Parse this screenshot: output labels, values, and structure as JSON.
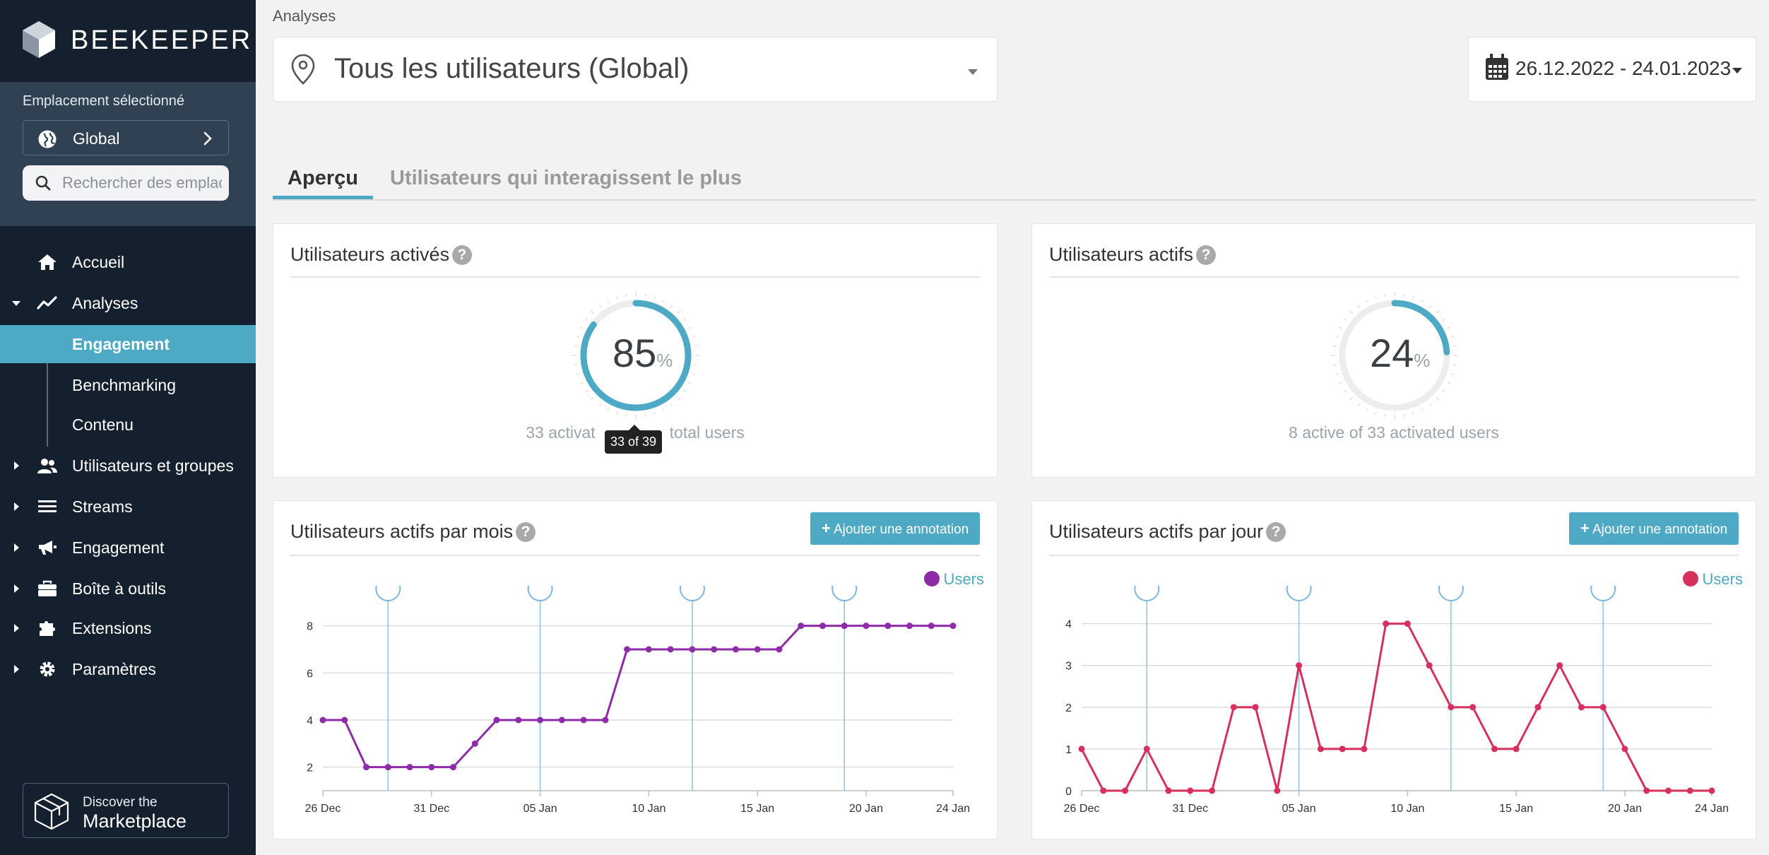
{
  "sidebar": {
    "brand": "BEEKEEPER",
    "location_label": "Emplacement sélectionné",
    "location_value": "Global",
    "search_placeholder": "Rechercher des emplacements",
    "nav": {
      "home": "Accueil",
      "analytics": "Analyses",
      "engagement_sub": "Engagement",
      "benchmarking": "Benchmarking",
      "content": "Contenu",
      "users_groups": "Utilisateurs et groupes",
      "streams": "Streams",
      "engagement": "Engagement",
      "toolbox": "Boîte à outils",
      "extensions": "Extensions",
      "settings": "Paramètres"
    },
    "marketplace_top": "Discover the",
    "marketplace_bottom": "Marketplace"
  },
  "header": {
    "breadcrumb": "Analyses",
    "user_scope": "Tous les utilisateurs (Global)",
    "date_range": "26.12.2022 - 24.01.2023"
  },
  "tabs": {
    "overview": "Aperçu",
    "top_users": "Utilisateurs qui interagissent le plus"
  },
  "cards": {
    "activated": {
      "title": "Utilisateurs activés",
      "help": "?",
      "value": "85",
      "fraction": 0.85,
      "unit": "%",
      "subtitle_left": "33 activat",
      "subtitle_right": "total users",
      "tooltip": "33 of 39"
    },
    "active": {
      "title": "Utilisateurs actifs",
      "help": "?",
      "value": "24",
      "fraction": 0.24,
      "unit": "%",
      "subtitle": "8 active of 33 activated users"
    },
    "monthly": {
      "title": "Utilisateurs actifs par mois",
      "help": "?",
      "button": "Ajouter une annotation",
      "button_icon": "plus-icon"
    },
    "daily": {
      "title": "Utilisateurs actifs par jour",
      "help": "?",
      "button": "Ajouter une annotation",
      "button_icon": "plus-icon"
    }
  },
  "colors": {
    "accent": "#4ea9c4",
    "sidebar_bg": "#14202e",
    "sidebar_panel": "#2f4153",
    "monthly_series": "#8e2ba8",
    "daily_series": "#d6305f"
  },
  "chart_data": [
    {
      "type": "line",
      "x": [
        "26 Dec",
        "27 Dec",
        "28 Dec",
        "29 Dec",
        "30 Dec",
        "31 Dec",
        "01 Jan",
        "02 Jan",
        "03 Jan",
        "04 Jan",
        "05 Jan",
        "06 Jan",
        "07 Jan",
        "08 Jan",
        "09 Jan",
        "10 Jan",
        "11 Jan",
        "12 Jan",
        "13 Jan",
        "14 Jan",
        "15 Jan",
        "16 Jan",
        "17 Jan",
        "18 Jan",
        "19 Jan",
        "20 Jan",
        "21 Jan",
        "22 Jan",
        "23 Jan",
        "24 Jan"
      ],
      "x_ticks": [
        "26 Dec",
        "31 Dec",
        "05 Jan",
        "10 Jan",
        "15 Jan",
        "20 Jan",
        "24 Jan"
      ],
      "y_ticks": [
        2,
        4,
        6,
        8
      ],
      "ylim": [
        1,
        8.8
      ],
      "series": [
        {
          "name": "Users",
          "values": [
            4,
            4,
            2,
            2,
            2,
            2,
            2,
            3,
            4,
            4,
            4,
            4,
            4,
            4,
            7,
            7,
            7,
            7,
            7,
            7,
            7,
            7,
            8,
            8,
            8,
            8,
            8,
            8,
            8,
            8
          ]
        }
      ],
      "annotations_x": [
        "29 Dec",
        "05 Jan",
        "12 Jan",
        "19 Jan"
      ],
      "legend": "top-right",
      "grid": true
    },
    {
      "type": "line",
      "x": [
        "26 Dec",
        "27 Dec",
        "28 Dec",
        "29 Dec",
        "30 Dec",
        "31 Dec",
        "01 Jan",
        "02 Jan",
        "03 Jan",
        "04 Jan",
        "05 Jan",
        "06 Jan",
        "07 Jan",
        "08 Jan",
        "09 Jan",
        "10 Jan",
        "11 Jan",
        "12 Jan",
        "13 Jan",
        "14 Jan",
        "15 Jan",
        "16 Jan",
        "17 Jan",
        "18 Jan",
        "19 Jan",
        "20 Jan",
        "21 Jan",
        "22 Jan",
        "23 Jan",
        "24 Jan"
      ],
      "x_ticks": [
        "26 Dec",
        "31 Dec",
        "05 Jan",
        "10 Jan",
        "15 Jan",
        "20 Jan",
        "24 Jan"
      ],
      "y_ticks": [
        0,
        1,
        2,
        3,
        4
      ],
      "ylim": [
        0,
        4.4
      ],
      "series": [
        {
          "name": "Users",
          "values": [
            1,
            0,
            0,
            1,
            0,
            0,
            0,
            2,
            2,
            0,
            3,
            1,
            1,
            1,
            4,
            4,
            3,
            2,
            2,
            1,
            1,
            2,
            3,
            2,
            2,
            1,
            0,
            0,
            0,
            0
          ]
        }
      ],
      "annotations_x": [
        "29 Dec",
        "05 Jan",
        "12 Jan",
        "19 Jan"
      ],
      "legend": "top-right",
      "grid": true
    }
  ]
}
